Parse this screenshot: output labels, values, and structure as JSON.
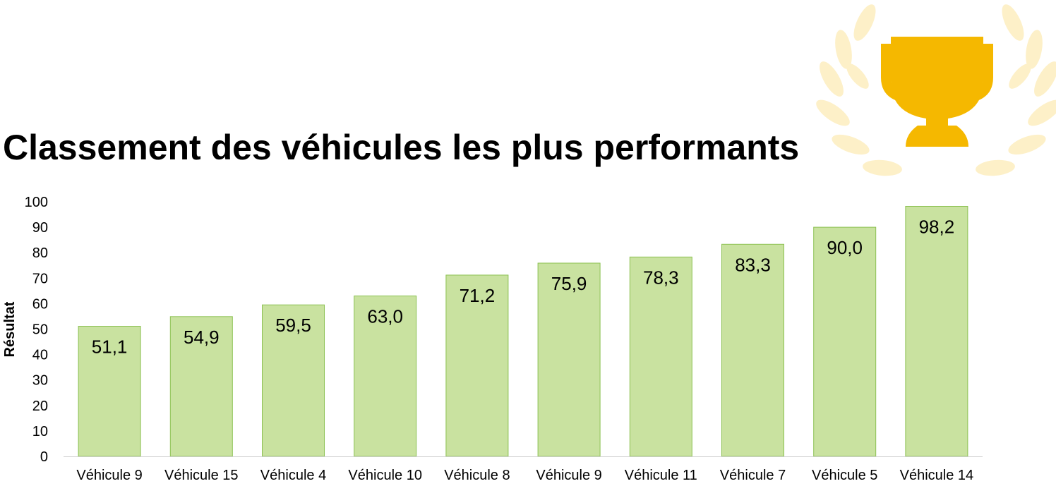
{
  "colors": {
    "bar_fill": "#c9e2a0",
    "bar_stroke": "#8cc152",
    "axis": "#d0d0d0",
    "trophy": "#f5b800",
    "laurel": "#fdf0c8"
  },
  "icons": {
    "trophy": "trophy-icon",
    "laurel": "laurel-wreath-icon"
  },
  "chart_data": {
    "type": "bar",
    "title": "Classement des véhicules les plus performants",
    "xlabel": "",
    "ylabel": "Résultat",
    "ylim": [
      0,
      100
    ],
    "yticks": [
      "0",
      "10",
      "20",
      "30",
      "40",
      "50",
      "60",
      "70",
      "80",
      "90",
      "100"
    ],
    "grid": false,
    "categories": [
      "Véhicule 9",
      "Véhicule 15",
      "Véhicule 4",
      "Véhicule 10",
      "Véhicule 8",
      "Véhicule 9",
      "Véhicule 11",
      "Véhicule 7",
      "Véhicule 5",
      "Véhicule 14"
    ],
    "values": [
      51.1,
      54.9,
      59.5,
      63.0,
      71.2,
      75.9,
      78.3,
      83.3,
      90.0,
      98.2
    ],
    "data_labels": [
      "51,1",
      "54,9",
      "59,5",
      "63,0",
      "71,2",
      "75,9",
      "78,3",
      "83,3",
      "90,0",
      "98,2"
    ]
  }
}
